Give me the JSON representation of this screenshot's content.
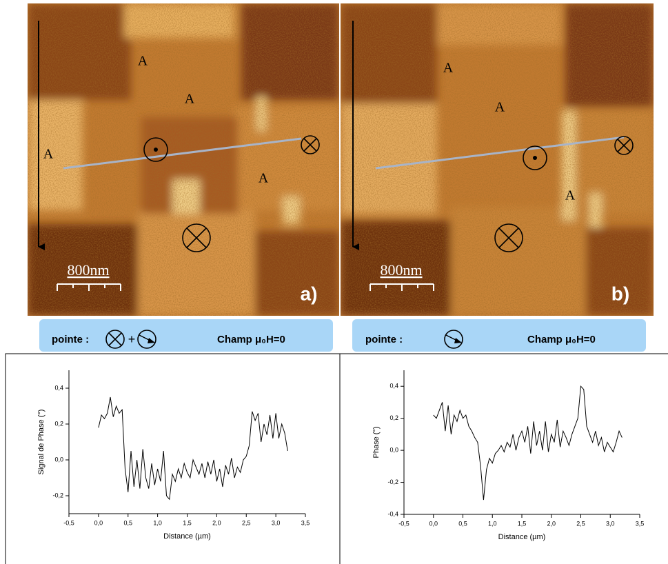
{
  "panels": [
    {
      "labels": [
        "A",
        "A",
        "A",
        "A"
      ],
      "scale": "800nm",
      "letter": "a)",
      "caption_prefix": "pointe :",
      "caption_plus": "+",
      "caption_field": "Champ μ₀H=0"
    },
    {
      "labels": [
        "A",
        "A",
        "A"
      ],
      "scale": "800nm",
      "letter": "b)",
      "caption_prefix": "pointe :",
      "caption_field": "Champ μ₀H=0"
    }
  ],
  "chart_data": [
    {
      "type": "line",
      "color": "#000000",
      "xlabel": "Distance (µm)",
      "ylabel": "Signal de Phase (°)",
      "x": [
        0,
        0.05,
        0.1,
        0.15,
        0.2,
        0.25,
        0.3,
        0.35,
        0.4,
        0.45,
        0.5,
        0.55,
        0.6,
        0.65,
        0.7,
        0.75,
        0.8,
        0.85,
        0.9,
        0.95,
        1.0,
        1.05,
        1.1,
        1.15,
        1.2,
        1.25,
        1.3,
        1.35,
        1.4,
        1.45,
        1.5,
        1.55,
        1.6,
        1.65,
        1.7,
        1.75,
        1.8,
        1.85,
        1.9,
        1.95,
        2.0,
        2.05,
        2.1,
        2.15,
        2.2,
        2.25,
        2.3,
        2.35,
        2.4,
        2.45,
        2.5,
        2.55,
        2.6,
        2.65,
        2.7,
        2.75,
        2.8,
        2.85,
        2.9,
        2.95,
        3.0,
        3.05,
        3.1,
        3.15,
        3.2
      ],
      "values": [
        0.18,
        0.25,
        0.23,
        0.26,
        0.35,
        0.24,
        0.3,
        0.26,
        0.28,
        -0.05,
        -0.18,
        0.05,
        -0.15,
        0.0,
        -0.16,
        0.06,
        -0.1,
        -0.16,
        -0.02,
        -0.14,
        -0.05,
        -0.12,
        0.05,
        -0.2,
        -0.22,
        -0.08,
        -0.12,
        -0.05,
        -0.1,
        -0.02,
        -0.07,
        -0.1,
        0.0,
        -0.04,
        -0.08,
        -0.02,
        -0.1,
        -0.01,
        -0.08,
        0.0,
        -0.12,
        -0.05,
        -0.15,
        -0.03,
        -0.08,
        0.01,
        -0.1,
        -0.04,
        -0.07,
        0.0,
        0.02,
        0.08,
        0.27,
        0.22,
        0.26,
        0.1,
        0.2,
        0.14,
        0.25,
        0.12,
        0.26,
        0.12,
        0.2,
        0.15,
        0.05
      ],
      "xlim": [
        -0.5,
        3.5
      ],
      "ylim": [
        -0.3,
        0.5
      ],
      "xticks": [
        {
          "value": -0.5,
          "label": "-0,5"
        },
        {
          "value": 0,
          "label": "0,0"
        },
        {
          "value": 0.5,
          "label": "0,5"
        },
        {
          "value": 1,
          "label": "1,0"
        },
        {
          "value": 1.5,
          "label": "1,5"
        },
        {
          "value": 2,
          "label": "2,0"
        },
        {
          "value": 2.5,
          "label": "2,5"
        },
        {
          "value": 3,
          "label": "3,0"
        },
        {
          "value": 3.5,
          "label": "3,5"
        }
      ],
      "yticks": [
        {
          "value": -0.2,
          "label": "-0,2"
        },
        {
          "value": 0,
          "label": "0,0"
        },
        {
          "value": 0.2,
          "label": "0,2"
        },
        {
          "value": 0.4,
          "label": "0,4"
        }
      ]
    },
    {
      "type": "line",
      "color": "#000000",
      "xlabel": "Distance (µm)",
      "ylabel": "Phase (°)",
      "x": [
        0,
        0.05,
        0.1,
        0.15,
        0.2,
        0.25,
        0.3,
        0.35,
        0.4,
        0.45,
        0.5,
        0.55,
        0.6,
        0.65,
        0.7,
        0.75,
        0.8,
        0.85,
        0.9,
        0.95,
        1.0,
        1.05,
        1.1,
        1.15,
        1.2,
        1.25,
        1.3,
        1.35,
        1.4,
        1.45,
        1.5,
        1.55,
        1.6,
        1.65,
        1.7,
        1.75,
        1.8,
        1.85,
        1.9,
        1.95,
        2.0,
        2.05,
        2.1,
        2.15,
        2.2,
        2.25,
        2.3,
        2.35,
        2.4,
        2.45,
        2.5,
        2.55,
        2.6,
        2.65,
        2.7,
        2.75,
        2.8,
        2.85,
        2.9,
        2.95,
        3.0,
        3.05,
        3.1,
        3.15,
        3.2
      ],
      "values": [
        0.22,
        0.2,
        0.25,
        0.3,
        0.12,
        0.28,
        0.1,
        0.22,
        0.18,
        0.25,
        0.2,
        0.22,
        0.15,
        0.12,
        0.08,
        0.05,
        -0.1,
        -0.31,
        -0.12,
        -0.05,
        -0.08,
        -0.02,
        0.0,
        0.03,
        -0.01,
        0.05,
        0.02,
        0.1,
        0.0,
        0.08,
        0.12,
        0.05,
        0.15,
        -0.02,
        0.18,
        0.03,
        0.12,
        0.0,
        0.18,
        -0.01,
        0.1,
        0.05,
        0.19,
        0.02,
        0.12,
        0.08,
        0.03,
        0.1,
        0.15,
        0.2,
        0.4,
        0.38,
        0.15,
        0.1,
        0.05,
        0.12,
        0.03,
        0.08,
        -0.01,
        0.05,
        0.02,
        -0.01,
        0.05,
        0.12,
        0.08
      ],
      "xlim": [
        -0.5,
        3.5
      ],
      "ylim": [
        -0.4,
        0.5
      ],
      "xticks": [
        {
          "value": -0.5,
          "label": "-0,5"
        },
        {
          "value": 0,
          "label": "0,0"
        },
        {
          "value": 0.5,
          "label": "0,5"
        },
        {
          "value": 1,
          "label": "1,0"
        },
        {
          "value": 1.5,
          "label": "1,5"
        },
        {
          "value": 2,
          "label": "2,0"
        },
        {
          "value": 2.5,
          "label": "2,5"
        },
        {
          "value": 3,
          "label": "3,0"
        },
        {
          "value": 3.5,
          "label": "3,5"
        }
      ],
      "yticks": [
        {
          "value": -0.4,
          "label": "-0,4"
        },
        {
          "value": -0.2,
          "label": "-0,2"
        },
        {
          "value": 0,
          "label": "0,0"
        },
        {
          "value": 0.2,
          "label": "0,2"
        },
        {
          "value": 0.4,
          "label": "0,4"
        }
      ]
    }
  ]
}
